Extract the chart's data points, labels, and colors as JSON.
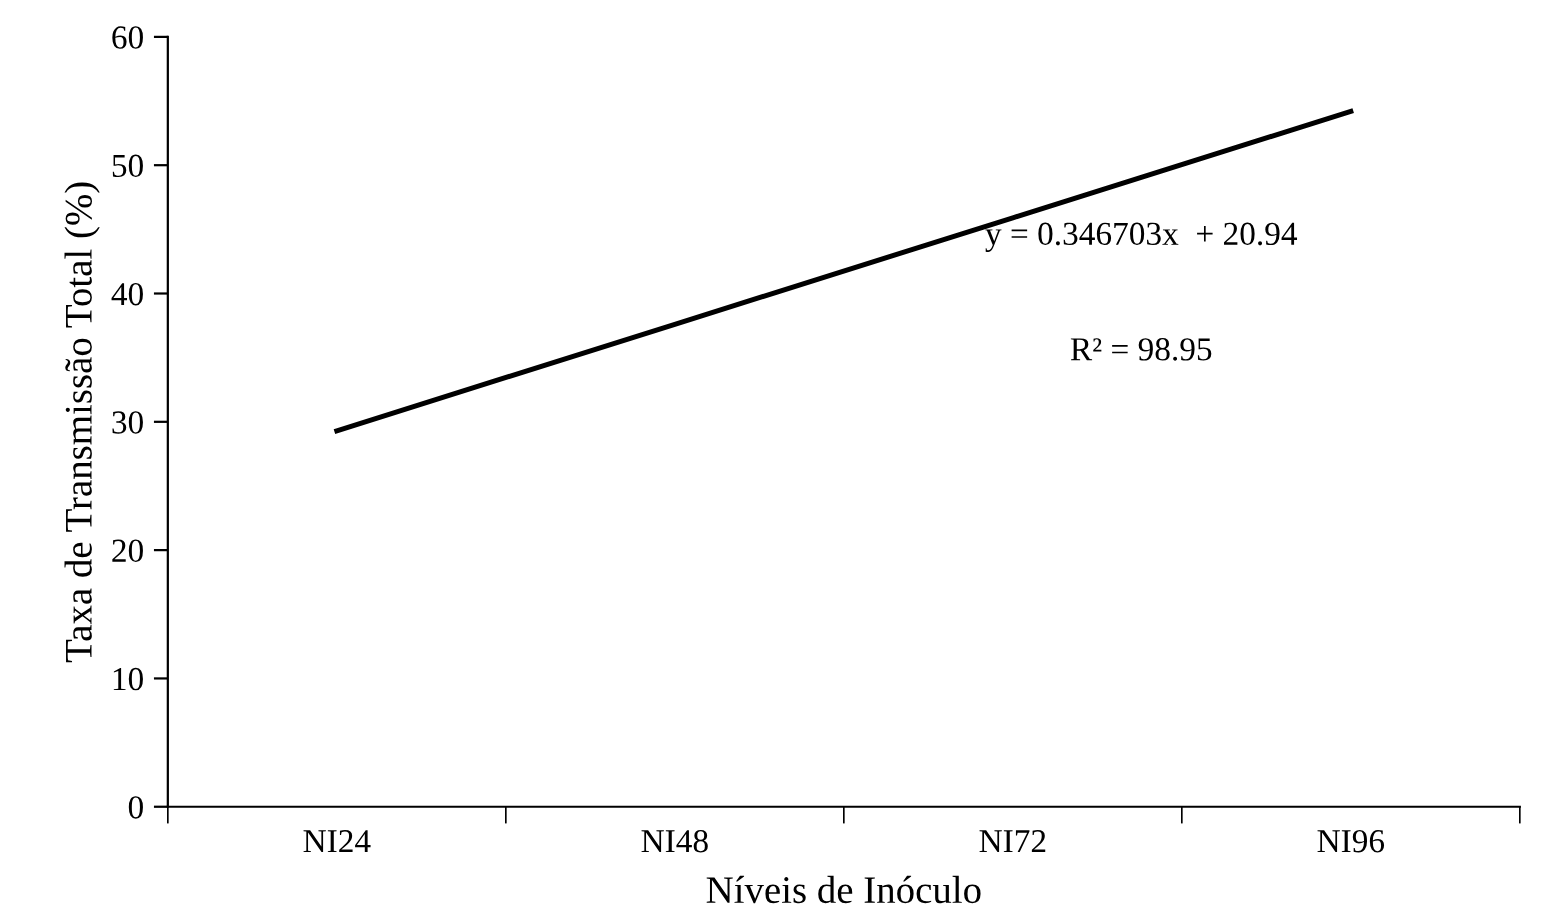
{
  "chart_data": {
    "type": "line",
    "xlabel": "Níveis de Inóculo",
    "ylabel": "Taxa de Transmissão Total (%)",
    "categories": [
      "NI24",
      "NI48",
      "NI72",
      "NI96"
    ],
    "series": [
      {
        "color": "#000000",
        "values": [
          29.3,
          37.6,
          45.9,
          54.2
        ]
      }
    ],
    "ylim": [
      0,
      60
    ],
    "yticks": [
      0,
      10,
      20,
      30,
      40,
      50,
      60
    ],
    "grid": false,
    "legend": false,
    "marker": "none",
    "line_style": "solid",
    "annotations": [
      "y = 0.346703x  + 20.94",
      "R² = 98.95"
    ]
  }
}
